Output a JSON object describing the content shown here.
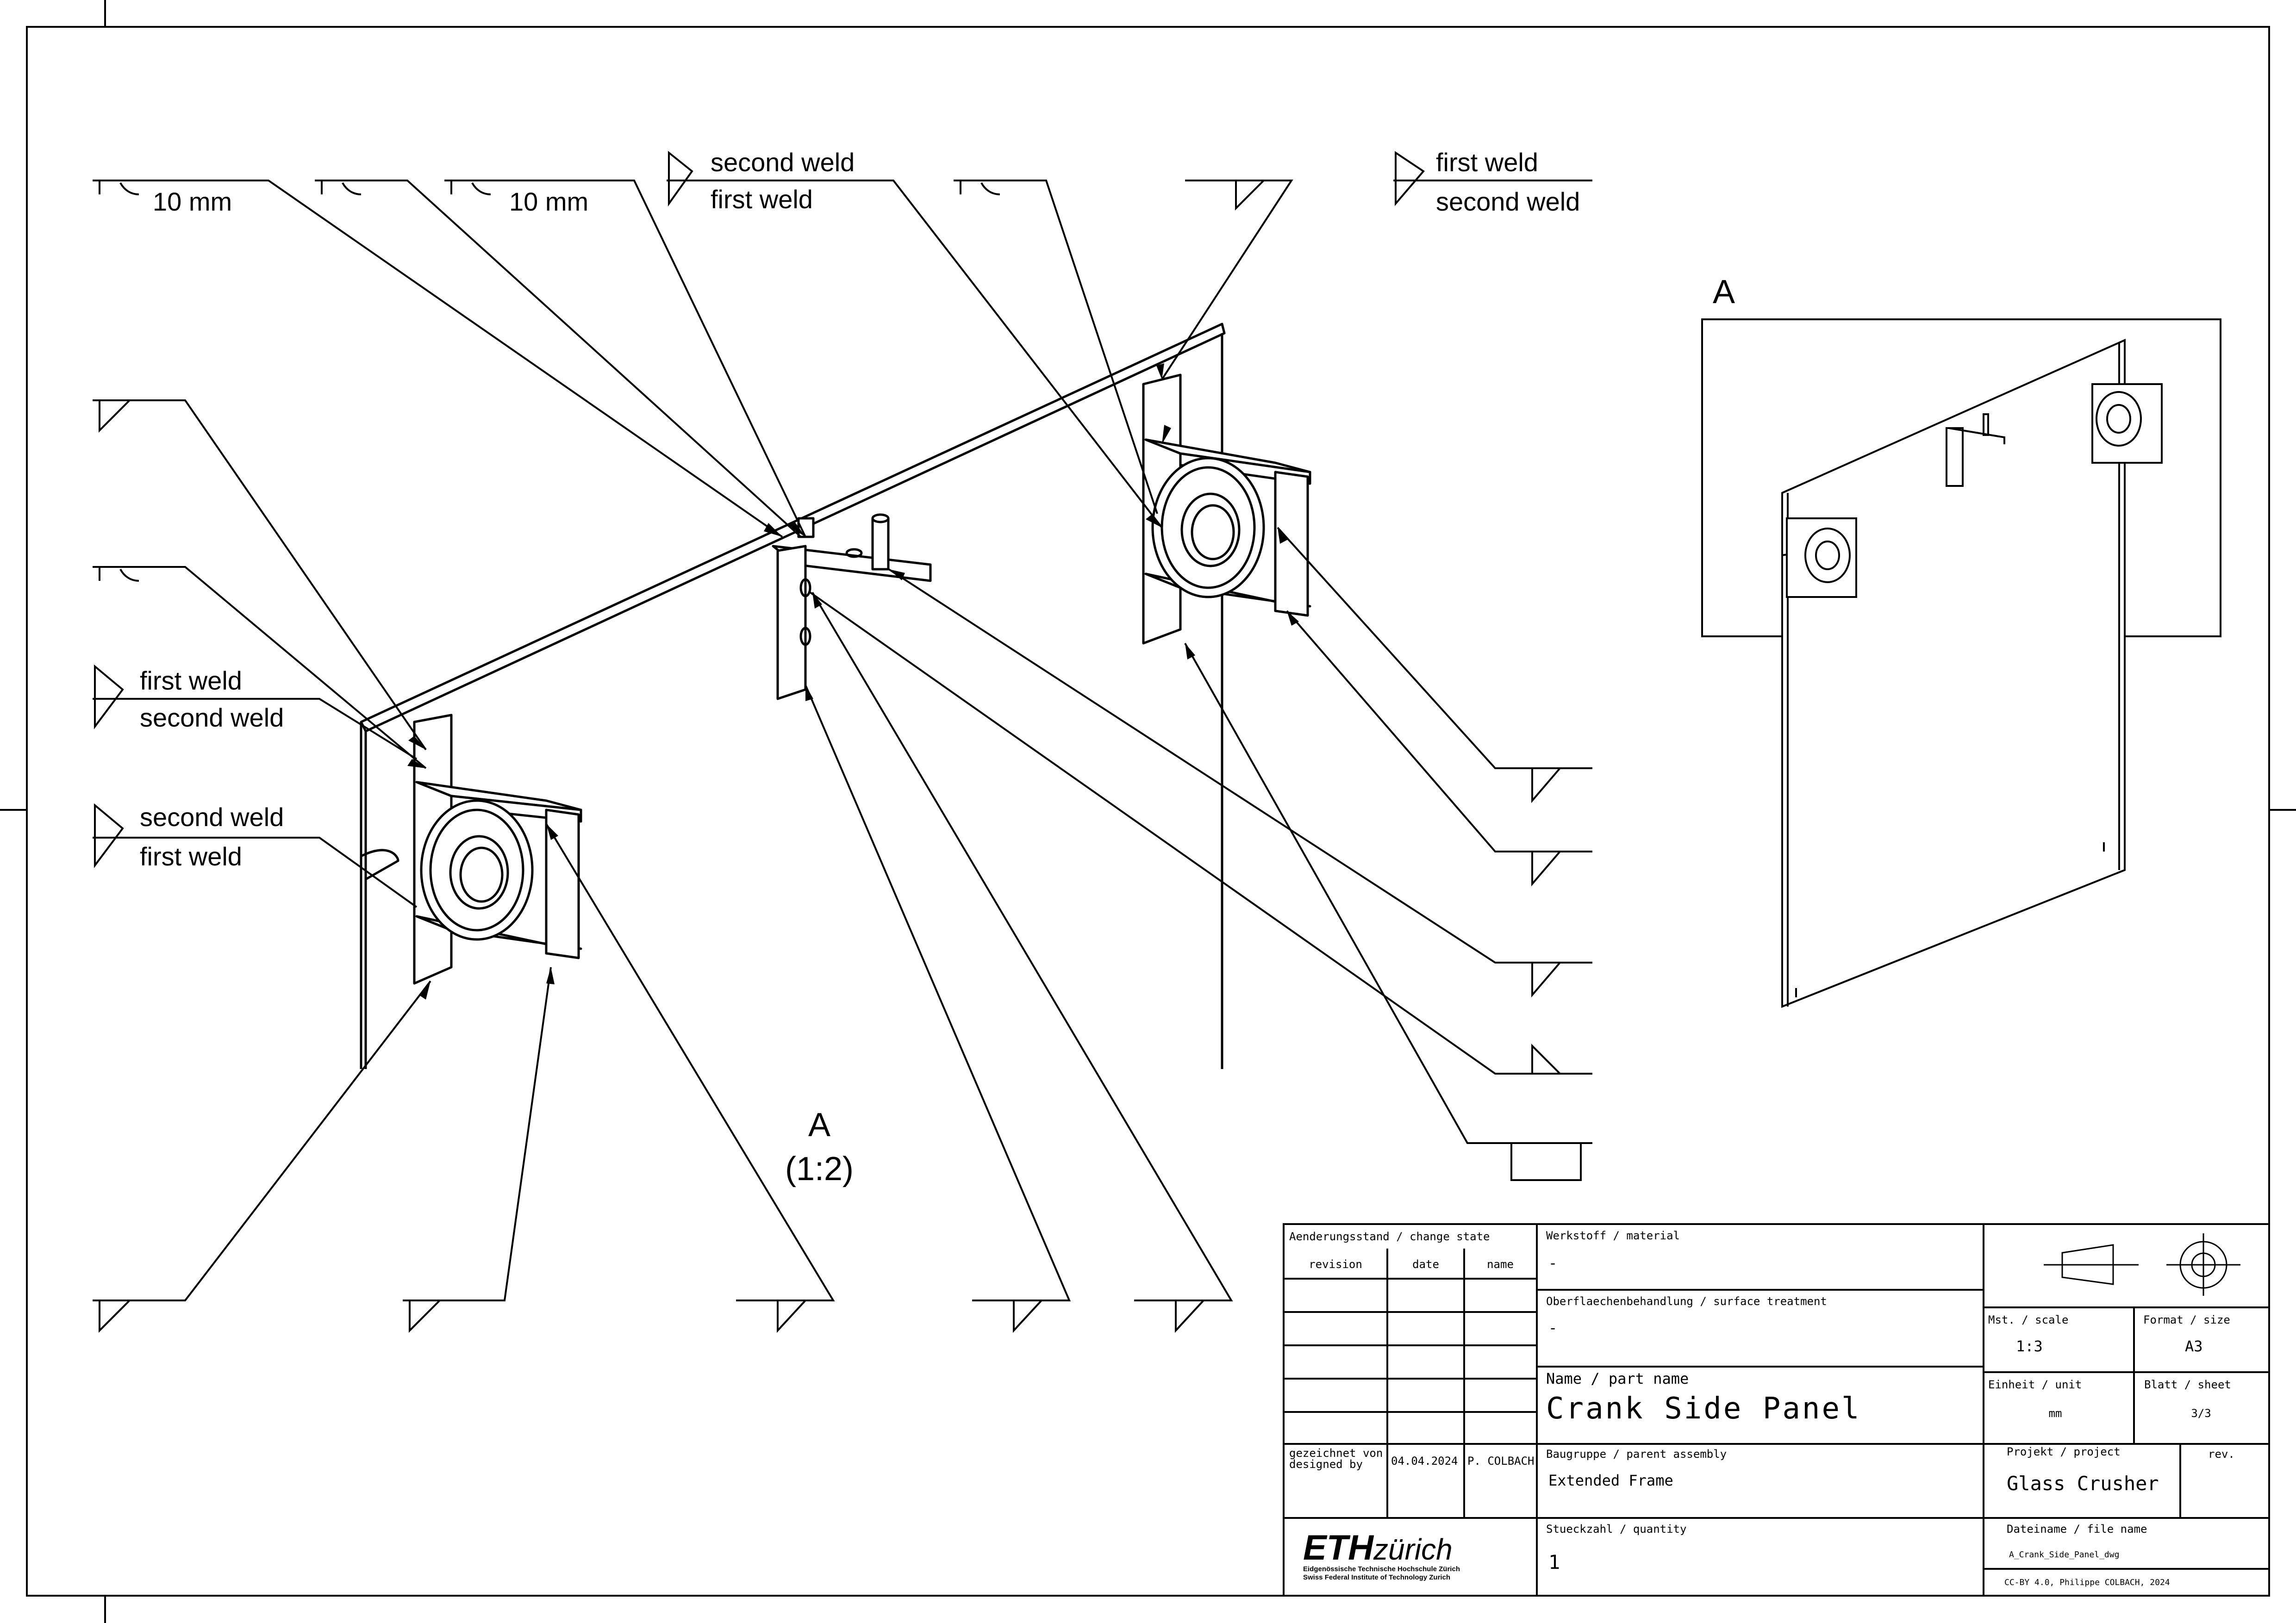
{
  "weld_labels": {
    "size_top_left": "10 mm",
    "size_top_middle": "10 mm",
    "top_center_upper": "second weld",
    "top_center_lower": "first weld",
    "top_right_upper": "first weld",
    "top_right_lower": "second weld",
    "left_1_upper": "first weld",
    "left_1_lower": "second weld",
    "left_2_upper": "second weld",
    "left_2_lower": "first weld"
  },
  "detail_view": {
    "label": "A",
    "scale": "(1:2)",
    "overview_label": "A"
  },
  "title_block": {
    "change_state_header": "Aenderungsstand / change state",
    "col_revision": "revision",
    "col_date": "date",
    "col_name": "name",
    "designed_by_label": "gezeichnet von designed by",
    "designed_by_label_1": "gezeichnet von",
    "designed_by_label_2": "designed by",
    "design_date": "04.04.2024",
    "designer": "P. COLBACH",
    "material_label": "Werkstoff / material",
    "material_value": "-",
    "surface_label": "Oberflaechenbehandlung / surface treatment",
    "surface_value": "-",
    "part_name_label": "Name / part name",
    "part_name_value": "Crank Side Panel",
    "assembly_label": "Baugruppe / parent assembly",
    "assembly_value": "Extended Frame",
    "quantity_label": "Stueckzahl / quantity",
    "quantity_value": "1",
    "scale_label": "Mst. / scale",
    "scale_value": "1:3",
    "format_label": "Format / size",
    "format_value": "A3",
    "unit_label": "Einheit / unit",
    "unit_value": "mm",
    "sheet_label": "Blatt / sheet",
    "sheet_value": "3/3",
    "project_label": "Projekt / project",
    "project_value": "Glass Crusher",
    "rev_label": "rev.",
    "filename_label": "Dateiname / file name",
    "filename_value": "A_Crank_Side_Panel_dwg",
    "license": "CC-BY 4.0, Philippe COLBACH, 2024"
  },
  "logo": {
    "eth_bold": "ETH",
    "eth_italic": "zürich",
    "line1": "Eidgenössische Technische Hochschule Zürich",
    "line2": "Swiss Federal Institute of Technology Zurich"
  }
}
